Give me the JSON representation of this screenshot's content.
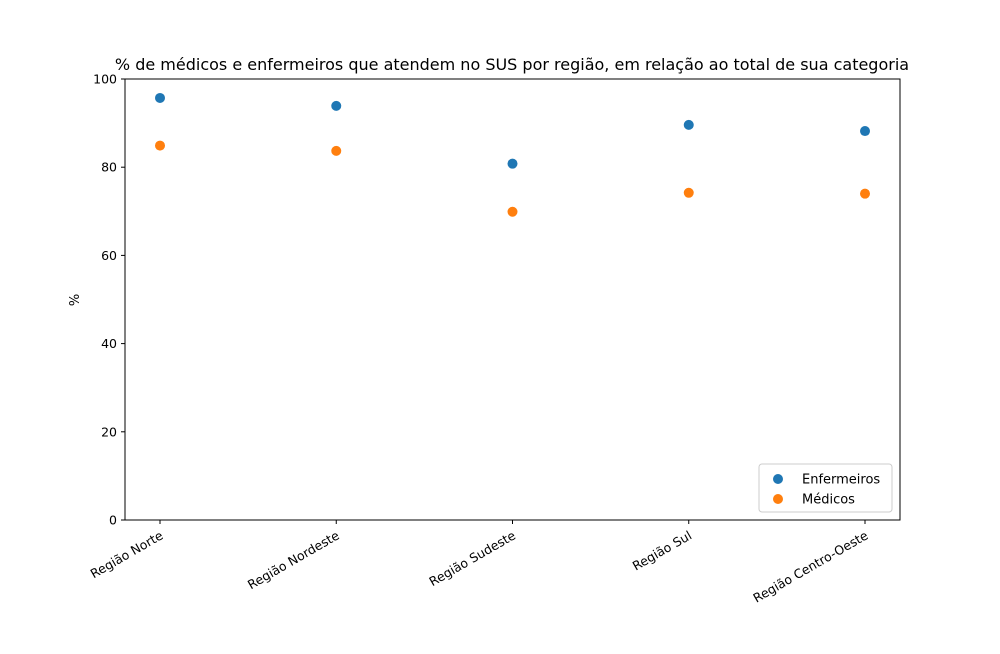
{
  "chart_data": {
    "type": "scatter",
    "title": "% de médicos e enfermeiros que atendem no SUS por região, em relação ao total de sua categoria",
    "xlabel": "",
    "ylabel": "%",
    "categories": [
      "Região Norte",
      "Região Nordeste",
      "Região Sudeste",
      "Região Sul",
      "Região Centro-Oeste"
    ],
    "ylim": [
      0,
      100
    ],
    "yticks": [
      0,
      20,
      40,
      60,
      80,
      100
    ],
    "grid": false,
    "legend_position": "lower-right",
    "series": [
      {
        "name": "Enfermeiros",
        "color": "#1f77b4",
        "values": [
          95.7,
          93.9,
          80.8,
          89.6,
          88.2
        ]
      },
      {
        "name": "Médicos",
        "color": "#ff7f0e",
        "values": [
          84.9,
          83.7,
          69.9,
          74.2,
          74.0
        ]
      }
    ]
  }
}
